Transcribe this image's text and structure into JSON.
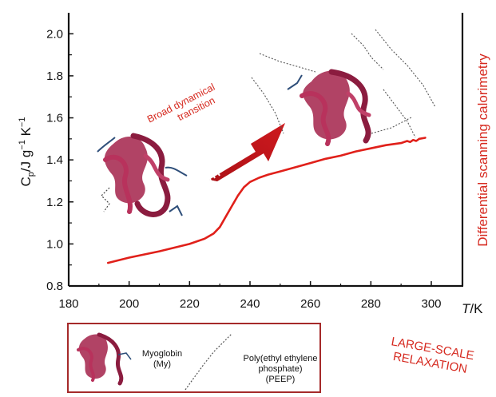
{
  "chart_data": {
    "type": "line",
    "ylabel_main": "C",
    "ylabel_sub": "p",
    "ylabel_rest": "/J g",
    "ylabel_exp1": "−1",
    "ylabel_k": " K",
    "ylabel_exp2": "−1",
    "xlabel_italic": "T",
    "xlabel_rest": "/K",
    "right_label": "Differential scanning calorimetry",
    "xlim": [
      180,
      300
    ],
    "ylim": [
      0.8,
      2.1
    ],
    "xticks": [
      "180",
      "200",
      "220",
      "240",
      "260",
      "280",
      "300"
    ],
    "yticks": [
      "0.8",
      "1.0",
      "1.2",
      "1.4",
      "1.6",
      "1.8",
      "2.0"
    ],
    "series": [
      {
        "color": "#e0201a",
        "x": [
          193,
          200,
          210,
          220,
          225,
          228,
          230,
          232,
          234,
          236,
          238,
          240,
          243,
          246,
          250,
          255,
          260,
          265,
          270,
          275,
          280,
          285,
          290,
          292,
          293,
          294,
          295,
          296,
          298
        ],
        "y": [
          0.91,
          0.935,
          0.965,
          1.0,
          1.025,
          1.05,
          1.08,
          1.13,
          1.18,
          1.23,
          1.27,
          1.295,
          1.315,
          1.33,
          1.345,
          1.365,
          1.385,
          1.405,
          1.42,
          1.44,
          1.455,
          1.47,
          1.48,
          1.49,
          1.485,
          1.495,
          1.49,
          1.5,
          1.505
        ]
      }
    ],
    "annotations": [
      "Broad dynamical",
      "transition"
    ]
  },
  "legend": {
    "myoglobin": [
      "Myoglobin",
      "(My)"
    ],
    "peep": [
      "Poly(ethyl ethylene",
      "phosphate)",
      "(PEEP)"
    ]
  },
  "side_note": [
    "LARGE-SCALE",
    "RELAXATION"
  ],
  "colors": {
    "curve": "#e0201a",
    "arrow": "#c8151b",
    "protein": "#a3224a",
    "legend_border": "#a52a2a"
  }
}
